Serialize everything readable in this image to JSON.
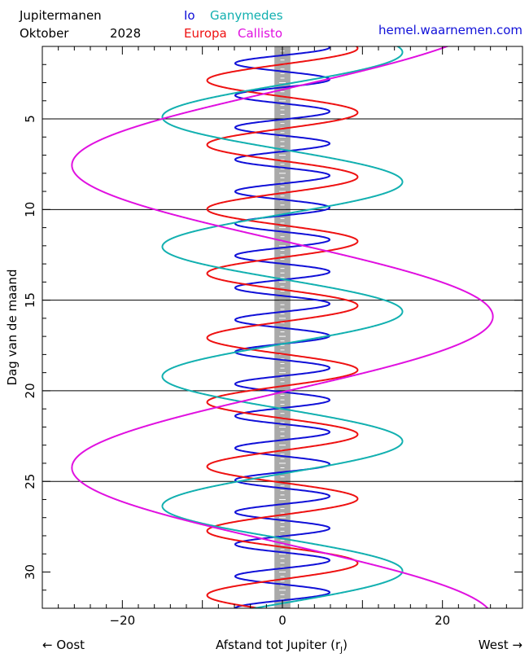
{
  "header": {
    "title_line1": "Jupitermanen",
    "title_month": "Oktober",
    "title_year": "2028",
    "website": "hemel.waarnemen.com"
  },
  "legend": [
    {
      "name": "Io",
      "color": "#1010d8"
    },
    {
      "name": "Ganymedes",
      "color": "#12b0b0"
    },
    {
      "name": "Europa",
      "color": "#ee1111"
    },
    {
      "name": "Callisto",
      "color": "#e010e0"
    }
  ],
  "footer": {
    "left": "← Oost",
    "xlabel": "Afstand tot Jupiter (r",
    "xlabel_sub": "J",
    "xlabel_close": ")",
    "right": "West →"
  },
  "chart_data": {
    "type": "line",
    "ylabel": "Dag van de maand",
    "xlim": [
      -30,
      30
    ],
    "ylim": [
      32,
      1
    ],
    "x_ticks": [
      -20,
      0,
      20
    ],
    "y_ticks": [
      5,
      10,
      15,
      20,
      25,
      30
    ],
    "hlines": [
      5,
      10,
      15,
      20,
      25
    ],
    "jupiter_band": [
      -1,
      1
    ],
    "series": [
      {
        "name": "Io",
        "color": "#1010d8",
        "amplitude": 5.9,
        "period_days": 1.769,
        "phase_day": 1.05
      },
      {
        "name": "Europa",
        "color": "#ee1111",
        "amplitude": 9.4,
        "period_days": 3.551,
        "phase_day": 1.1
      },
      {
        "name": "Ganymedes",
        "color": "#12b0b0",
        "amplitude": 15.0,
        "period_days": 7.155,
        "phase_day": 1.32
      },
      {
        "name": "Callisto",
        "color": "#e010e0",
        "amplitude": 26.3,
        "period_days": 16.689,
        "phase_day": 15.9
      }
    ]
  }
}
